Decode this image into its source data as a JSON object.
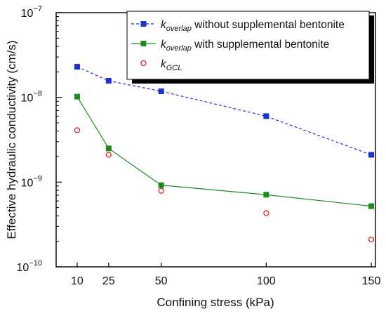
{
  "chart_data": {
    "type": "line",
    "xlabel": "Confining stress (kPa)",
    "ylabel": "Effective hydraulic conductivity (cm/s)",
    "x_ticks": [
      10,
      25,
      50,
      100,
      150
    ],
    "xlim": [
      0,
      152
    ],
    "y_scale": "log",
    "ylim": [
      1e-10,
      1e-07
    ],
    "y_ticks": [
      {
        "value": 1e-10,
        "base": "10",
        "exp": "−10"
      },
      {
        "value": 1e-09,
        "base": "10",
        "exp": "−9"
      },
      {
        "value": 1e-08,
        "base": "10",
        "exp": "−8"
      },
      {
        "value": 1e-07,
        "base": "10",
        "exp": "−7"
      }
    ],
    "legend_position": "top-right",
    "series": [
      {
        "name_main": "k",
        "name_sub": "overlap",
        "name_rest": " without supplemental bentonite",
        "color": "#1f2fd6",
        "style": "dashed-square",
        "x": [
          10,
          25,
          50,
          100,
          150
        ],
        "y": [
          2.3e-08,
          1.57e-08,
          1.18e-08,
          6e-09,
          2.1e-09
        ]
      },
      {
        "name_main": "k",
        "name_sub": "overlap",
        "name_rest": " with supplemental bentonite",
        "color": "#1e8a1e",
        "style": "solid-square",
        "x": [
          10,
          25,
          50,
          100,
          150
        ],
        "y": [
          1.02e-08,
          2.5e-09,
          9.2e-10,
          7.1e-10,
          5.2e-10
        ]
      },
      {
        "name_main": "k",
        "name_sub": "GCL",
        "name_rest": "",
        "color": "#e02020",
        "style": "open-circle",
        "x": [
          10,
          25,
          50,
          100,
          150
        ],
        "y": [
          4.1e-09,
          2.1e-09,
          7.9e-10,
          4.3e-10,
          2.1e-10
        ]
      }
    ]
  }
}
